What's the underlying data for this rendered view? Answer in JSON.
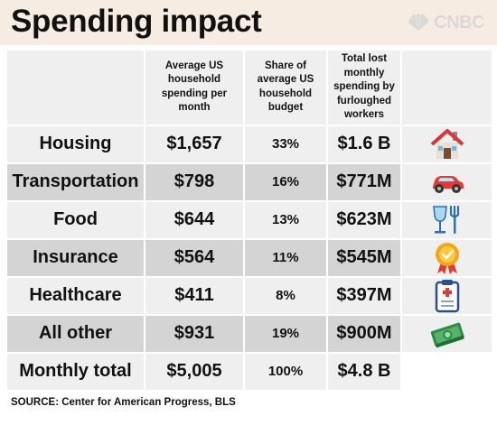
{
  "header": {
    "title": "Spending impact",
    "brand": "CNBC"
  },
  "chart_data": {
    "type": "table",
    "columns": [
      "",
      "Average US household spending per month",
      "Share of average US household budget",
      "Total lost monthly spending by furloughed workers",
      ""
    ],
    "rows": [
      {
        "category": "Housing",
        "spending": "$1,657",
        "share": "33%",
        "lost": "$1.6 B",
        "icon": "house-icon"
      },
      {
        "category": "Transportation",
        "spending": "$798",
        "share": "16%",
        "lost": "$771M",
        "icon": "car-icon"
      },
      {
        "category": "Food",
        "spending": "$644",
        "share": "13%",
        "lost": "$623M",
        "icon": "glass-fork-icon"
      },
      {
        "category": "Insurance",
        "spending": "$564",
        "share": "11%",
        "lost": "$545M",
        "icon": "medal-icon"
      },
      {
        "category": "Healthcare",
        "spending": "$411",
        "share": "8%",
        "lost": "$397M",
        "icon": "clipboard-icon"
      },
      {
        "category": "All other",
        "spending": "$931",
        "share": "19%",
        "lost": "$900M",
        "icon": "cash-icon"
      },
      {
        "category": "Monthly total",
        "spending": "$5,005",
        "share": "100%",
        "lost": "$4.8 B",
        "icon": ""
      }
    ]
  },
  "source": "SOURCE: Center for American Progress, BLS",
  "colors": {
    "header_bg": "#f6ece2",
    "light_cell": "#efefef",
    "dark_cell": "#d4d4d4"
  }
}
